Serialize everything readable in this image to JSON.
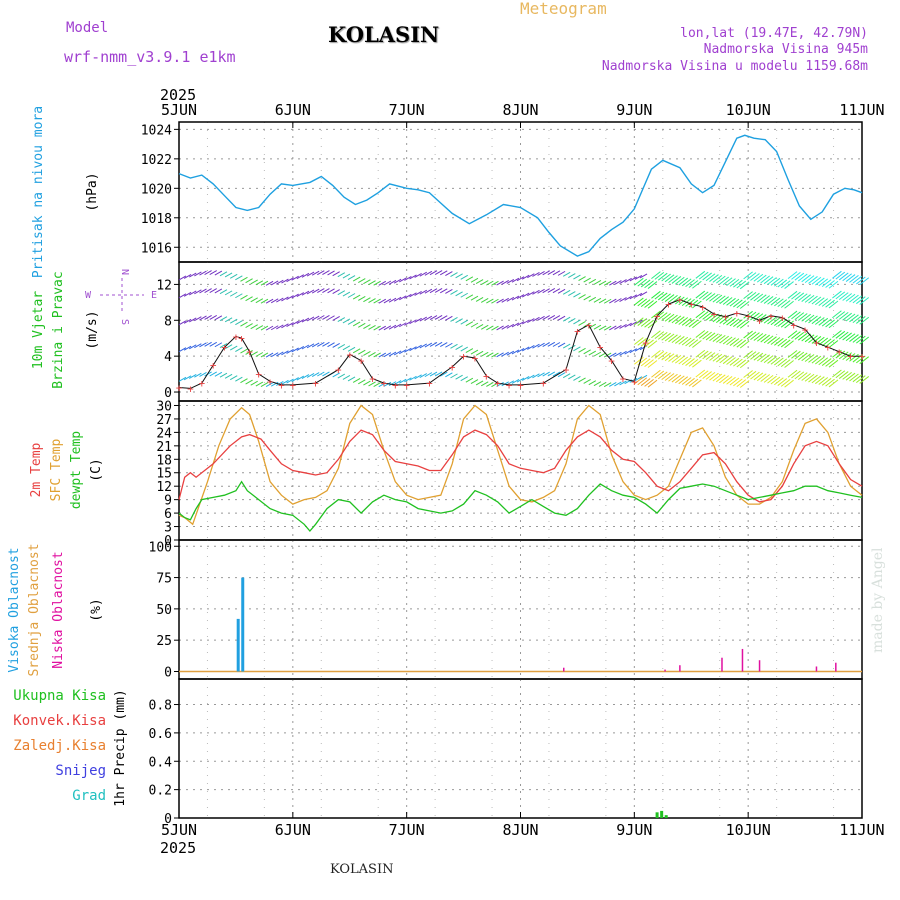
{
  "header": {
    "model_label": "Model",
    "model_version": "wrf-nmm_v3.9.1  e1km",
    "title": "KOLASIN",
    "meteogram_label": "Meteogram",
    "lonlat": "lon,lat (19.47E, 42.79N)",
    "elevation": "Nadmorska Visina 945m",
    "model_elevation": "Nadmorska Visina u modelu 1159.68m"
  },
  "footer": {
    "station": "KOLASIN",
    "watermark": "made by Angel"
  },
  "colors": {
    "pressure": "#1ea0e0",
    "temp2m": "#e84040",
    "sfc": "#e0a030",
    "dew": "#20c020",
    "high_cloud": "#20a0e0",
    "mid_cloud": "#e0a040",
    "low_cloud": "#e010a0",
    "wind_title": "#20c020",
    "wind_sub": "#a050d0",
    "pressure_title": "#20a0e0"
  },
  "chart_data": {
    "type": "line",
    "x_axis": {
      "year": "2025",
      "ticks": [
        "5JUN",
        "6JUN",
        "7JUN",
        "8JUN",
        "9JUN",
        "10JUN",
        "11JUN"
      ],
      "range_days": [
        0,
        6
      ]
    },
    "panels": [
      {
        "id": "pressure",
        "title": "Pritisak na nivou mora",
        "unit": "(hPa)",
        "yticks": [
          1016,
          1018,
          1020,
          1022,
          1024
        ],
        "ylim": [
          1015,
          1024.5
        ],
        "series": [
          {
            "x": [
              0,
              0.1,
              0.2,
              0.3,
              0.4,
              0.5,
              0.6,
              0.7,
              0.8,
              0.9,
              1.0,
              1.15,
              1.25,
              1.35,
              1.45,
              1.55,
              1.65,
              1.75,
              1.85,
              2.0,
              2.1,
              2.2,
              2.3,
              2.4,
              2.55,
              2.7,
              2.85,
              3.0,
              3.15,
              3.25,
              3.35,
              3.5,
              3.6,
              3.7,
              3.8,
              3.9,
              4.0,
              4.1,
              4.15,
              4.25,
              4.4,
              4.5,
              4.6,
              4.7,
              4.8,
              4.9,
              4.97,
              5.05,
              5.15,
              5.25,
              5.35,
              5.45,
              5.55,
              5.65,
              5.75,
              5.85,
              5.93,
              6.0
            ],
            "y": [
              1021,
              1020.7,
              1020.9,
              1020.3,
              1019.5,
              1018.7,
              1018.5,
              1018.7,
              1019.6,
              1020.3,
              1020.2,
              1020.4,
              1020.8,
              1020.2,
              1019.4,
              1018.9,
              1019.2,
              1019.7,
              1020.3,
              1020.0,
              1019.9,
              1019.7,
              1019.0,
              1018.3,
              1017.6,
              1018.2,
              1018.9,
              1018.7,
              1018.0,
              1017.0,
              1016.1,
              1015.4,
              1015.7,
              1016.6,
              1017.2,
              1017.7,
              1018.6,
              1020.4,
              1021.3,
              1021.9,
              1021.4,
              1020.3,
              1019.7,
              1020.2,
              1021.8,
              1023.4,
              1023.6,
              1023.4,
              1023.3,
              1022.5,
              1020.6,
              1018.8,
              1017.9,
              1018.4,
              1019.6,
              1020.0,
              1019.9,
              1019.7
            ]
          }
        ]
      },
      {
        "id": "wind",
        "title": "10m Vjetar",
        "subtitle": "Brzina i Pravac",
        "unit": "(m/s)",
        "compass": {
          "n": "N",
          "w": "W",
          "e": "E",
          "s": "S"
        },
        "yticks": [
          0,
          4,
          8,
          12
        ],
        "ylim": [
          -1,
          14.5
        ],
        "series": [
          {
            "name": "speed",
            "x": [
              0,
              0.1,
              0.2,
              0.3,
              0.4,
              0.5,
              0.55,
              0.62,
              0.7,
              0.8,
              0.9,
              1.0,
              1.2,
              1.4,
              1.5,
              1.6,
              1.7,
              1.8,
              1.9,
              2.0,
              2.2,
              2.4,
              2.5,
              2.6,
              2.7,
              2.8,
              2.9,
              3.0,
              3.2,
              3.4,
              3.5,
              3.6,
              3.7,
              3.8,
              3.9,
              4.0,
              4.1,
              4.2,
              4.3,
              4.4,
              4.5,
              4.6,
              4.7,
              4.8,
              4.9,
              5.0,
              5.1,
              5.2,
              5.3,
              5.4,
              5.5,
              5.6,
              5.7,
              5.8,
              5.9,
              6.0
            ],
            "y": [
              0.5,
              0.4,
              1.0,
              3.0,
              5.0,
              6.2,
              6.0,
              4.5,
              2.0,
              1.2,
              0.8,
              0.8,
              1.0,
              2.5,
              4.2,
              3.5,
              1.5,
              1.0,
              0.8,
              0.8,
              1.0,
              2.8,
              4.0,
              3.8,
              1.8,
              1.0,
              0.8,
              0.8,
              1.0,
              2.5,
              6.8,
              7.5,
              5.0,
              3.5,
              1.5,
              1.2,
              5.5,
              8.5,
              9.8,
              10.3,
              9.8,
              9.5,
              8.7,
              8.4,
              8.8,
              8.5,
              8.0,
              8.5,
              8.3,
              7.5,
              7.0,
              5.5,
              5.0,
              4.5,
              4.0,
              4.0
            ]
          }
        ]
      },
      {
        "id": "temperature",
        "titles": [
          "2m Temp",
          "SFC Temp",
          "dewpt Temp"
        ],
        "unit": "(C)",
        "yticks": [
          0,
          3,
          6,
          9,
          12,
          15,
          18,
          21,
          24,
          27,
          30
        ],
        "ylim": [
          0,
          31
        ],
        "series": [
          {
            "name": "2m Temp",
            "x": [
              0,
              0.05,
              0.1,
              0.15,
              0.3,
              0.45,
              0.55,
              0.62,
              0.72,
              0.8,
              0.9,
              1.0,
              1.1,
              1.2,
              1.3,
              1.4,
              1.5,
              1.6,
              1.7,
              1.8,
              1.9,
              2.0,
              2.1,
              2.2,
              2.3,
              2.4,
              2.5,
              2.6,
              2.7,
              2.8,
              2.9,
              3.0,
              3.1,
              3.2,
              3.3,
              3.4,
              3.5,
              3.6,
              3.7,
              3.8,
              3.9,
              4.0,
              4.1,
              4.2,
              4.3,
              4.4,
              4.5,
              4.6,
              4.7,
              4.8,
              4.9,
              5.0,
              5.1,
              5.2,
              5.3,
              5.4,
              5.5,
              5.6,
              5.7,
              5.8,
              5.9,
              6.0
            ],
            "y": [
              9,
              14,
              15,
              14,
              17,
              21,
              23,
              23.5,
              22.5,
              20,
              17,
              15.5,
              15,
              14.5,
              15,
              18,
              22,
              24.5,
              23.5,
              20,
              17.5,
              17,
              16.5,
              15.5,
              15.5,
              19,
              23,
              24.5,
              23.5,
              21,
              17,
              16,
              15.5,
              15,
              16,
              20,
              23,
              24.5,
              23,
              20,
              18,
              17.5,
              15,
              12,
              11,
              13,
              16,
              19,
              19.5,
              17,
              13,
              10,
              8.5,
              9,
              12,
              17,
              21,
              22,
              21,
              17,
              13.5,
              12
            ]
          },
          {
            "name": "SFC Temp",
            "x": [
              0,
              0.05,
              0.12,
              0.25,
              0.35,
              0.45,
              0.55,
              0.62,
              0.7,
              0.8,
              0.9,
              1.0,
              1.1,
              1.2,
              1.3,
              1.4,
              1.5,
              1.6,
              1.7,
              1.8,
              1.9,
              2.0,
              2.1,
              2.2,
              2.3,
              2.4,
              2.5,
              2.6,
              2.7,
              2.8,
              2.9,
              3.0,
              3.1,
              3.2,
              3.3,
              3.4,
              3.5,
              3.6,
              3.7,
              3.8,
              3.9,
              4.0,
              4.1,
              4.2,
              4.3,
              4.4,
              4.5,
              4.6,
              4.7,
              4.8,
              4.9,
              5.0,
              5.1,
              5.2,
              5.3,
              5.4,
              5.5,
              5.6,
              5.7,
              5.8,
              5.9,
              6.0
            ],
            "y": [
              5.5,
              5,
              3.5,
              13,
              21,
              27,
              29.5,
              28,
              22,
              13,
              10,
              8,
              9,
              9.5,
              11,
              16,
              26,
              30,
              28,
              20,
              13,
              10,
              9,
              9.5,
              10,
              17,
              27,
              30,
              28,
              20,
              12,
              9,
              8.5,
              9.5,
              11,
              17,
              27,
              30,
              28,
              19,
              13,
              10,
              9,
              10,
              12,
              18,
              24,
              25,
              21,
              14,
              10,
              8,
              8,
              9.5,
              13,
              20,
              26,
              27,
              24,
              17,
              12,
              10
            ]
          },
          {
            "name": "dewpt Temp",
            "x": [
              0,
              0.05,
              0.1,
              0.15,
              0.2,
              0.3,
              0.4,
              0.5,
              0.55,
              0.6,
              0.7,
              0.8,
              0.9,
              1.0,
              1.1,
              1.15,
              1.2,
              1.3,
              1.4,
              1.5,
              1.6,
              1.7,
              1.8,
              1.9,
              2.0,
              2.1,
              2.2,
              2.3,
              2.4,
              2.5,
              2.6,
              2.7,
              2.8,
              2.9,
              3.0,
              3.1,
              3.2,
              3.3,
              3.4,
              3.5,
              3.6,
              3.7,
              3.8,
              3.9,
              4.0,
              4.1,
              4.2,
              4.3,
              4.4,
              4.5,
              4.6,
              4.7,
              4.8,
              4.9,
              5.0,
              5.1,
              5.2,
              5.3,
              5.4,
              5.5,
              5.6,
              5.7,
              5.8,
              5.9,
              6.0
            ],
            "y": [
              6,
              5,
              4.5,
              7,
              9,
              9.5,
              10,
              11,
              13,
              11,
              9,
              7,
              6,
              5.5,
              3.5,
              2,
              3.5,
              7,
              9,
              8.5,
              6,
              8.5,
              10,
              9,
              8.5,
              7,
              6.5,
              6,
              6.5,
              8,
              11,
              10,
              8.5,
              6,
              7.5,
              9,
              7.5,
              6,
              5.5,
              7,
              10,
              12.5,
              11,
              10,
              9.5,
              8,
              6,
              9,
              11.5,
              12,
              12.5,
              12,
              11,
              10,
              9,
              9.5,
              10,
              10.5,
              11,
              12,
              12,
              11,
              10.5,
              10,
              9.5
            ]
          }
        ]
      },
      {
        "id": "clouds",
        "titles": [
          "Visoka Oblacnost",
          "Srednja Oblacnost",
          "Niska Oblacnost"
        ],
        "unit": "(%)",
        "yticks": [
          0,
          25,
          50,
          75,
          100
        ],
        "ylim": [
          -6,
          105
        ],
        "bars_high": {
          "x": [
            0.52,
            0.56
          ],
          "values": [
            42,
            75
          ]
        },
        "bars_low": {
          "x": [
            3.38,
            4.27,
            4.4,
            4.77,
            4.95,
            5.1,
            5.6,
            5.77
          ],
          "values": [
            3,
            1.5,
            5,
            11,
            18,
            9,
            4,
            7
          ]
        }
      },
      {
        "id": "precip",
        "titles": [
          "Ukupna Kisa",
          "Konvek.Kisa",
          "Zaledj.Kisa",
          "Snijeg",
          "Grad"
        ],
        "unit": "1hr Precip (mm)",
        "yticks": [
          0,
          0.2,
          0.4,
          0.6,
          0.8
        ],
        "ylim": [
          0,
          0.98
        ],
        "bars_total": {
          "x": [
            4.2,
            4.24,
            4.28
          ],
          "values": [
            0.04,
            0.05,
            0.02
          ]
        }
      }
    ]
  }
}
